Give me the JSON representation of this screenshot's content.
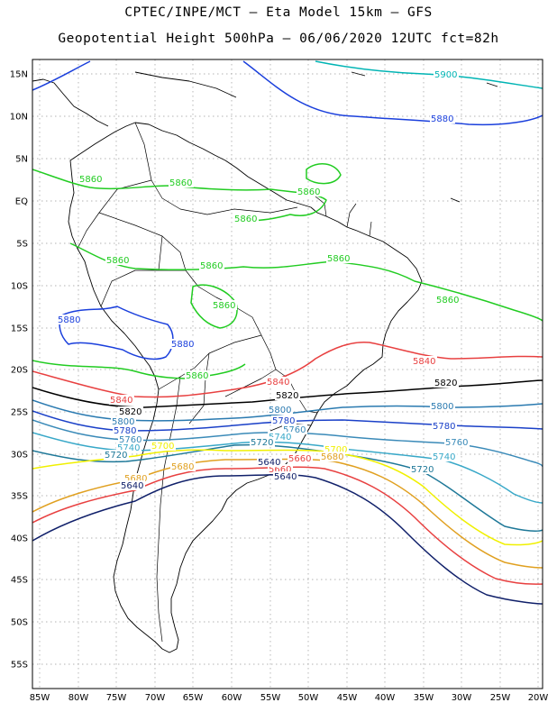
{
  "title_line1": "CPTEC/INPE/MCT –  Eta Model 15km – GFS",
  "title_line2": "Geopotential Height 500hPa – 06/06/2020 12UTC fct=82h",
  "lat_labels": [
    "15N",
    "10N",
    "5N",
    "EQ",
    "5S",
    "10S",
    "15S",
    "20S",
    "25S",
    "30S",
    "35S",
    "40S",
    "45S",
    "50S",
    "55S"
  ],
  "lon_labels": [
    "85W",
    "80W",
    "75W",
    "70W",
    "65W",
    "60W",
    "55W",
    "50W",
    "45W",
    "40W",
    "35W",
    "30W",
    "25W",
    "20W"
  ],
  "contours": [
    {
      "level": "5900",
      "color": "#00b4b4"
    },
    {
      "level": "5880",
      "color": "#1a3fdc"
    },
    {
      "level": "5860",
      "color": "#22cc22"
    },
    {
      "level": "5840",
      "color": "#e84040"
    },
    {
      "level": "5820",
      "color": "#000000"
    },
    {
      "level": "5800",
      "color": "#2a7ab0"
    },
    {
      "level": "5780",
      "color": "#1a40c8"
    },
    {
      "level": "5760",
      "color": "#3a8ab8"
    },
    {
      "level": "5740",
      "color": "#38a8c8"
    },
    {
      "level": "5720",
      "color": "#1e7898"
    },
    {
      "level": "5700",
      "color": "#f0f000"
    },
    {
      "level": "5680",
      "color": "#e0a020"
    },
    {
      "level": "5660",
      "color": "#e84040"
    },
    {
      "level": "5640",
      "color": "#10206a"
    }
  ]
}
